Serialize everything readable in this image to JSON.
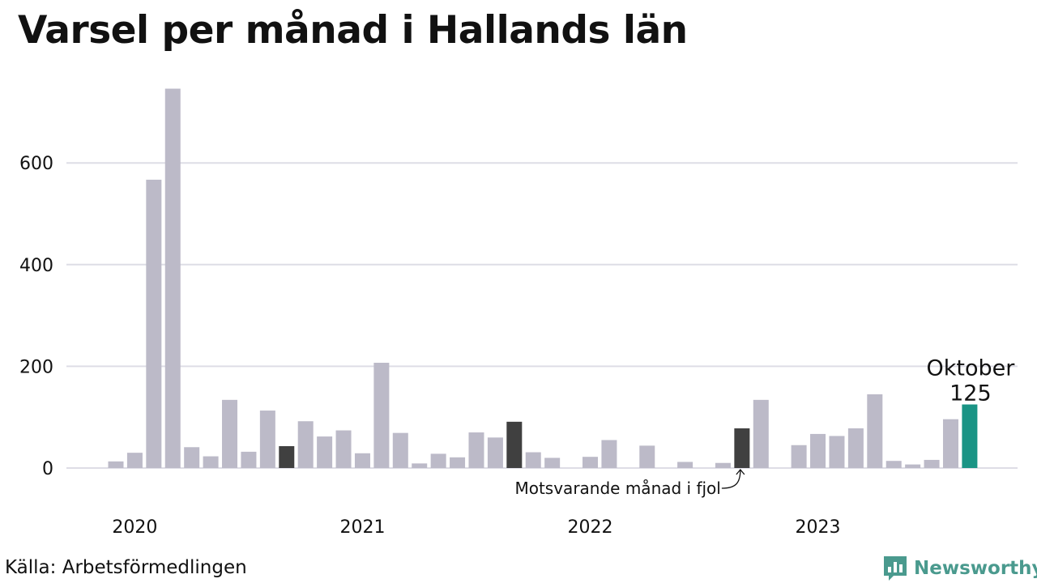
{
  "chart_data": {
    "type": "bar",
    "title": "Varsel per månad i Hallands län",
    "xlabel": "",
    "ylabel": "",
    "ylim": [
      0,
      750
    ],
    "yticks": [
      0,
      200,
      400,
      600
    ],
    "ytick_labels": [
      "0",
      "200",
      "400",
      "600"
    ],
    "xtick_labels": [
      "2020",
      "2021",
      "2022",
      "2023"
    ],
    "grid": true,
    "legend": "none",
    "colors": {
      "default": "#bcbac8",
      "comparison": "#404040",
      "highlight": "#1a9485",
      "grid": "#dedde6"
    },
    "months": [
      "2020-01",
      "2020-02",
      "2020-03",
      "2020-04",
      "2020-05",
      "2020-06",
      "2020-07",
      "2020-08",
      "2020-09",
      "2020-10",
      "2020-11",
      "2020-12",
      "2021-01",
      "2021-02",
      "2021-03",
      "2021-04",
      "2021-05",
      "2021-06",
      "2021-07",
      "2021-08",
      "2021-09",
      "2021-10",
      "2021-11",
      "2021-12",
      "2022-01",
      "2022-02",
      "2022-03",
      "2022-04",
      "2022-05",
      "2022-06",
      "2022-07",
      "2022-08",
      "2022-09",
      "2022-10",
      "2022-11",
      "2022-12",
      "2023-01",
      "2023-02",
      "2023-03",
      "2023-04",
      "2023-05",
      "2023-06",
      "2023-07",
      "2023-08",
      "2023-09",
      "2023-10"
    ],
    "values": [
      13,
      30,
      567,
      746,
      41,
      23,
      134,
      32,
      113,
      43,
      92,
      62,
      74,
      29,
      207,
      69,
      9,
      28,
      21,
      70,
      60,
      91,
      31,
      20,
      0,
      22,
      55,
      0,
      44,
      0,
      12,
      0,
      10,
      78,
      134,
      0,
      45,
      67,
      63,
      78,
      145,
      14,
      7,
      16,
      96,
      125
    ],
    "comparison_months": [
      "2020-10",
      "2021-10",
      "2022-10"
    ],
    "highlight_month": "2023-10",
    "annotations": {
      "highlight_label": "Oktober",
      "highlight_value": "125",
      "comparison_label": "Motsvarande månad i fjol"
    }
  },
  "source": "Källa: Arbetsförmedlingen",
  "brand": {
    "name": "Newsworthy",
    "icon": "bar-chart-speech-bubble-icon",
    "color": "#4a9a8e"
  }
}
